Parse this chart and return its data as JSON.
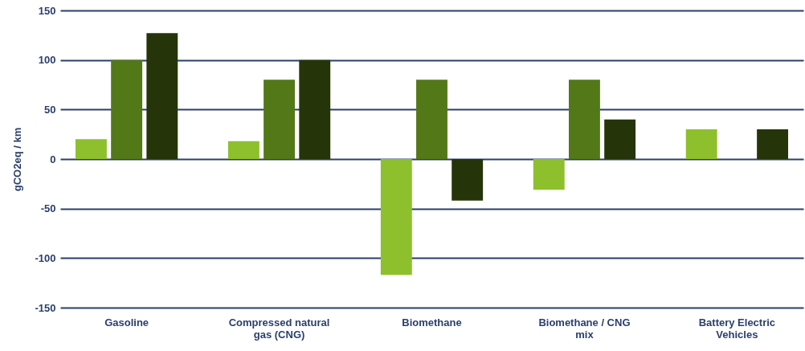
{
  "chart_data": {
    "type": "bar",
    "ylabel": "gCO2eq / km",
    "categories": [
      "Gasoline",
      "Compressed natural gas (CNG)",
      "Biomethane",
      "Biomethane / CNG mix",
      "Battery Electric Vehicles"
    ],
    "series": [
      {
        "color": "#8dc02c",
        "values": [
          20,
          18,
          -117,
          -31,
          30
        ]
      },
      {
        "color": "#527818",
        "values": [
          100,
          80,
          80,
          80,
          null
        ]
      },
      {
        "color": "#263509",
        "values": [
          127,
          100,
          -42,
          40,
          30
        ]
      }
    ],
    "ylim": [
      -150,
      150
    ],
    "yticks": [
      -150,
      -100,
      -50,
      0,
      50,
      100,
      150
    ],
    "grid": "y"
  }
}
